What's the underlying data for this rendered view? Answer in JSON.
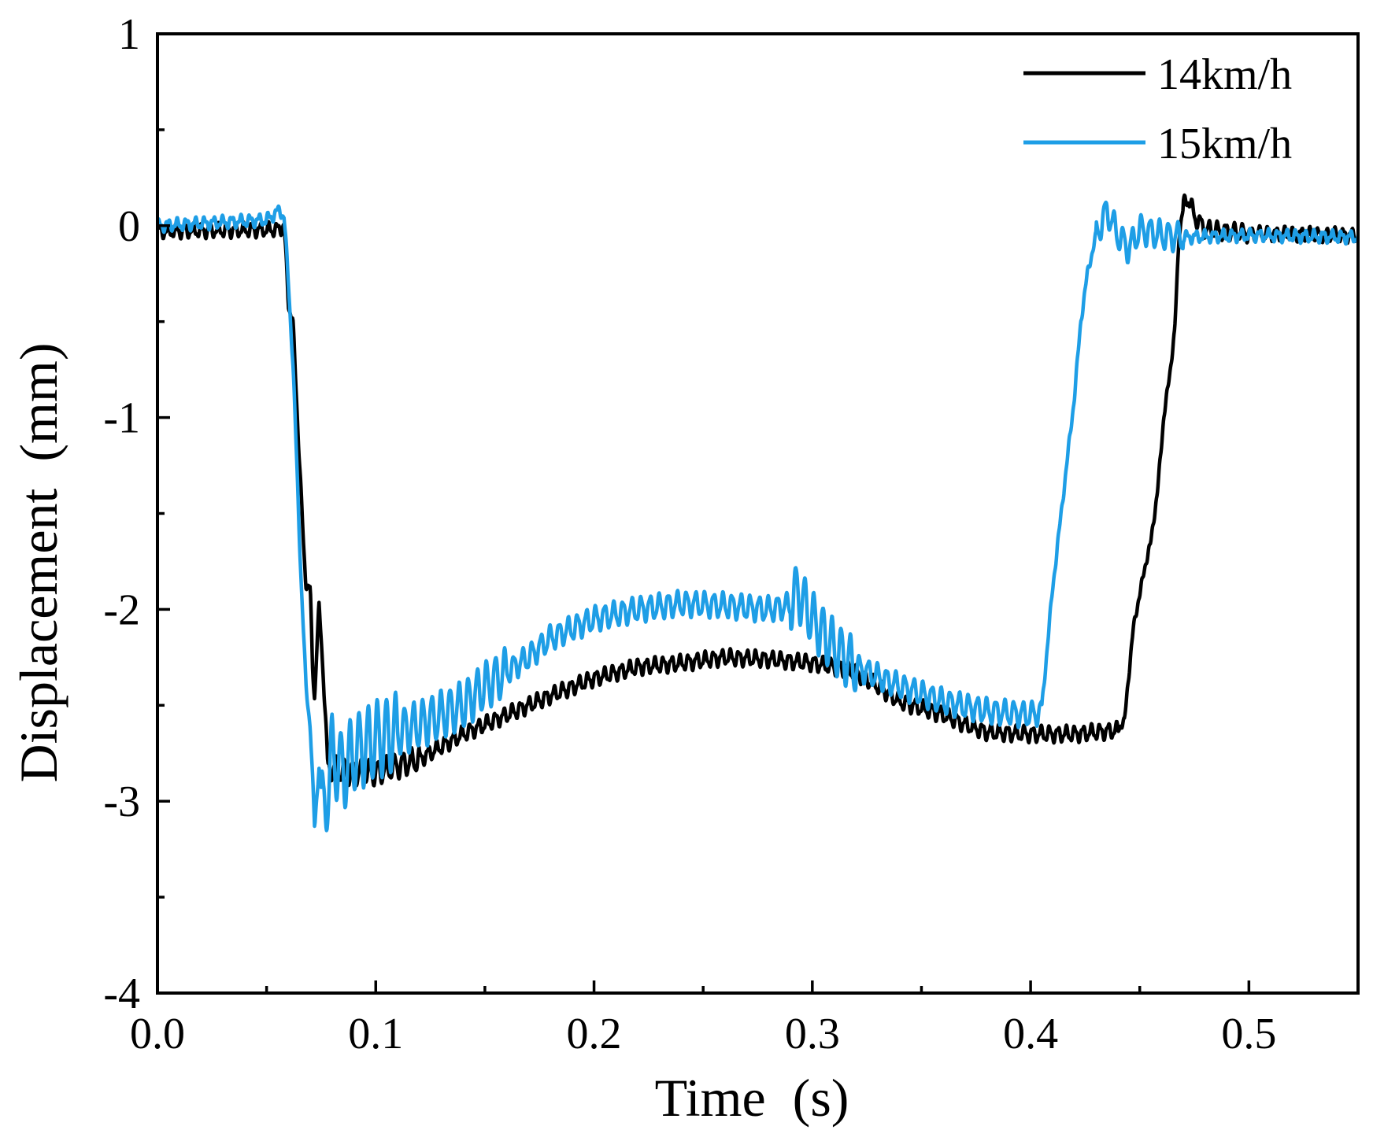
{
  "chart_data": {
    "type": "line",
    "title": "",
    "xlabel": "Time  (s)",
    "ylabel": "Displacement  (mm)",
    "xlim": [
      0,
      0.55
    ],
    "ylim": [
      -4,
      1
    ],
    "xticks": [
      0.0,
      0.1,
      0.2,
      0.3,
      0.4,
      0.5
    ],
    "xtick_labels": [
      "0.0",
      "0.1",
      "0.2",
      "0.3",
      "0.4",
      "0.5"
    ],
    "yticks": [
      1,
      0,
      -1,
      -2,
      -3,
      -4
    ],
    "ytick_labels": [
      "1",
      "0",
      "-1",
      "-2",
      "-3",
      "-4"
    ],
    "x_minor_step": 0.05,
    "y_minor_step": 0.5,
    "grid": false,
    "legend_position": "top-right",
    "series": [
      {
        "name": "14km/h",
        "color": "#000000",
        "keypoints": [
          [
            0.0,
            -0.03
          ],
          [
            0.055,
            -0.02
          ],
          [
            0.058,
            0.0
          ],
          [
            0.06,
            -0.4
          ],
          [
            0.062,
            -0.5
          ],
          [
            0.065,
            -1.2
          ],
          [
            0.067,
            -1.7
          ],
          [
            0.068,
            -1.85
          ],
          [
            0.07,
            -1.9
          ],
          [
            0.071,
            -2.3
          ],
          [
            0.072,
            -2.45
          ],
          [
            0.073,
            -2.2
          ],
          [
            0.074,
            -2.0
          ],
          [
            0.076,
            -2.3
          ],
          [
            0.078,
            -2.85
          ],
          [
            0.08,
            -2.82
          ],
          [
            0.085,
            -2.85
          ],
          [
            0.1,
            -2.85
          ],
          [
            0.12,
            -2.78
          ],
          [
            0.14,
            -2.65
          ],
          [
            0.16,
            -2.55
          ],
          [
            0.18,
            -2.45
          ],
          [
            0.2,
            -2.36
          ],
          [
            0.22,
            -2.3
          ],
          [
            0.24,
            -2.28
          ],
          [
            0.26,
            -2.25
          ],
          [
            0.28,
            -2.26
          ],
          [
            0.3,
            -2.28
          ],
          [
            0.31,
            -2.3
          ],
          [
            0.32,
            -2.33
          ],
          [
            0.33,
            -2.4
          ],
          [
            0.34,
            -2.48
          ],
          [
            0.36,
            -2.55
          ],
          [
            0.37,
            -2.6
          ],
          [
            0.38,
            -2.64
          ],
          [
            0.4,
            -2.65
          ],
          [
            0.42,
            -2.65
          ],
          [
            0.44,
            -2.63
          ],
          [
            0.443,
            -2.58
          ],
          [
            0.447,
            -2.1
          ],
          [
            0.452,
            -1.8
          ],
          [
            0.455,
            -1.65
          ],
          [
            0.458,
            -1.4
          ],
          [
            0.461,
            -1.0
          ],
          [
            0.464,
            -0.75
          ],
          [
            0.466,
            -0.55
          ],
          [
            0.468,
            -0.05
          ],
          [
            0.47,
            0.1
          ],
          [
            0.472,
            0.15
          ],
          [
            0.475,
            0.05
          ],
          [
            0.48,
            -0.02
          ],
          [
            0.5,
            -0.04
          ],
          [
            0.55,
            -0.05
          ]
        ]
      },
      {
        "name": "15km/h",
        "color": "#1E9EE6",
        "keypoints": [
          [
            0.0,
            0.0
          ],
          [
            0.05,
            0.03
          ],
          [
            0.056,
            0.08
          ],
          [
            0.058,
            0.05
          ],
          [
            0.06,
            -0.3
          ],
          [
            0.062,
            -0.7
          ],
          [
            0.064,
            -1.3
          ],
          [
            0.066,
            -1.9
          ],
          [
            0.068,
            -2.4
          ],
          [
            0.07,
            -2.6
          ],
          [
            0.072,
            -3.15
          ],
          [
            0.074,
            -2.8
          ],
          [
            0.076,
            -3.1
          ],
          [
            0.08,
            -2.75
          ],
          [
            0.085,
            -2.85
          ],
          [
            0.09,
            -2.75
          ],
          [
            0.1,
            -2.68
          ],
          [
            0.12,
            -2.6
          ],
          [
            0.14,
            -2.5
          ],
          [
            0.15,
            -2.4
          ],
          [
            0.17,
            -2.25
          ],
          [
            0.18,
            -2.15
          ],
          [
            0.2,
            -2.05
          ],
          [
            0.22,
            -2.0
          ],
          [
            0.24,
            -1.97
          ],
          [
            0.26,
            -1.98
          ],
          [
            0.28,
            -2.0
          ],
          [
            0.29,
            -1.98
          ],
          [
            0.293,
            -1.9
          ],
          [
            0.3,
            -2.05
          ],
          [
            0.31,
            -2.2
          ],
          [
            0.32,
            -2.3
          ],
          [
            0.34,
            -2.4
          ],
          [
            0.36,
            -2.48
          ],
          [
            0.38,
            -2.53
          ],
          [
            0.4,
            -2.55
          ],
          [
            0.405,
            -2.53
          ],
          [
            0.41,
            -1.9
          ],
          [
            0.415,
            -1.4
          ],
          [
            0.42,
            -0.9
          ],
          [
            0.423,
            -0.5
          ],
          [
            0.426,
            -0.25
          ],
          [
            0.43,
            -0.05
          ],
          [
            0.435,
            0.08
          ],
          [
            0.44,
            -0.05
          ],
          [
            0.445,
            -0.12
          ],
          [
            0.45,
            -0.02
          ],
          [
            0.46,
            -0.05
          ],
          [
            0.47,
            -0.06
          ],
          [
            0.5,
            -0.05
          ],
          [
            0.55,
            -0.06
          ]
        ]
      }
    ]
  }
}
